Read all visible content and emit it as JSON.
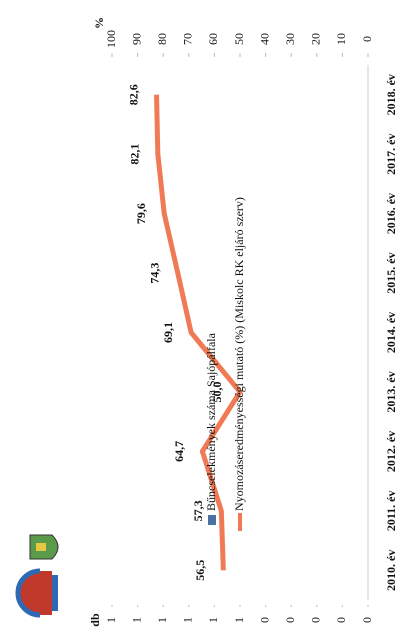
{
  "chart_data": {
    "type": "bar_line",
    "categories": [
      "2010. év",
      "2011. év",
      "2012. év",
      "2013. év",
      "2014. év",
      "2015. év",
      "2016. év",
      "2017. év",
      "2018. év"
    ],
    "series": [
      {
        "name": "Bűncselekmények száma Sajópálfala",
        "color": "#4a6fa5",
        "type": "bar",
        "axis": "y",
        "values": [
          0,
          0,
          0,
          0,
          0,
          0,
          0,
          0,
          0
        ]
      },
      {
        "name": "Nyomozáseredményességi mutató (%) (Miskolc RK eljáró szerv)",
        "color": "#f07a55",
        "type": "line",
        "axis": "y2",
        "values": [
          56.5,
          57.3,
          64.7,
          50.0,
          69.1,
          74.3,
          79.6,
          82.1,
          82.6
        ],
        "value_labels": [
          "56,5",
          "57,3",
          "64,7",
          "50,0",
          "69,1",
          "74,3",
          "79,6",
          "82,1",
          "82,6"
        ]
      }
    ],
    "ylabel": "db",
    "ylim": [
      0,
      1
    ],
    "yticks": [
      {
        "value": 0,
        "label": "0"
      },
      {
        "value": 0.1,
        "label": "0"
      },
      {
        "value": 0.2,
        "label": "0"
      },
      {
        "value": 0.3,
        "label": "0"
      },
      {
        "value": 0.4,
        "label": "0"
      },
      {
        "value": 0.5,
        "label": "1"
      },
      {
        "value": 0.6,
        "label": "1"
      },
      {
        "value": 0.7,
        "label": "1"
      },
      {
        "value": 0.8,
        "label": "1"
      },
      {
        "value": 0.9,
        "label": "1"
      },
      {
        "value": 1,
        "label": "1"
      }
    ],
    "y2label": "%",
    "y2lim": [
      0,
      100
    ],
    "y2ticks": [
      0,
      10,
      20,
      30,
      40,
      50,
      60,
      70,
      80,
      90,
      100
    ],
    "grid": false
  }
}
